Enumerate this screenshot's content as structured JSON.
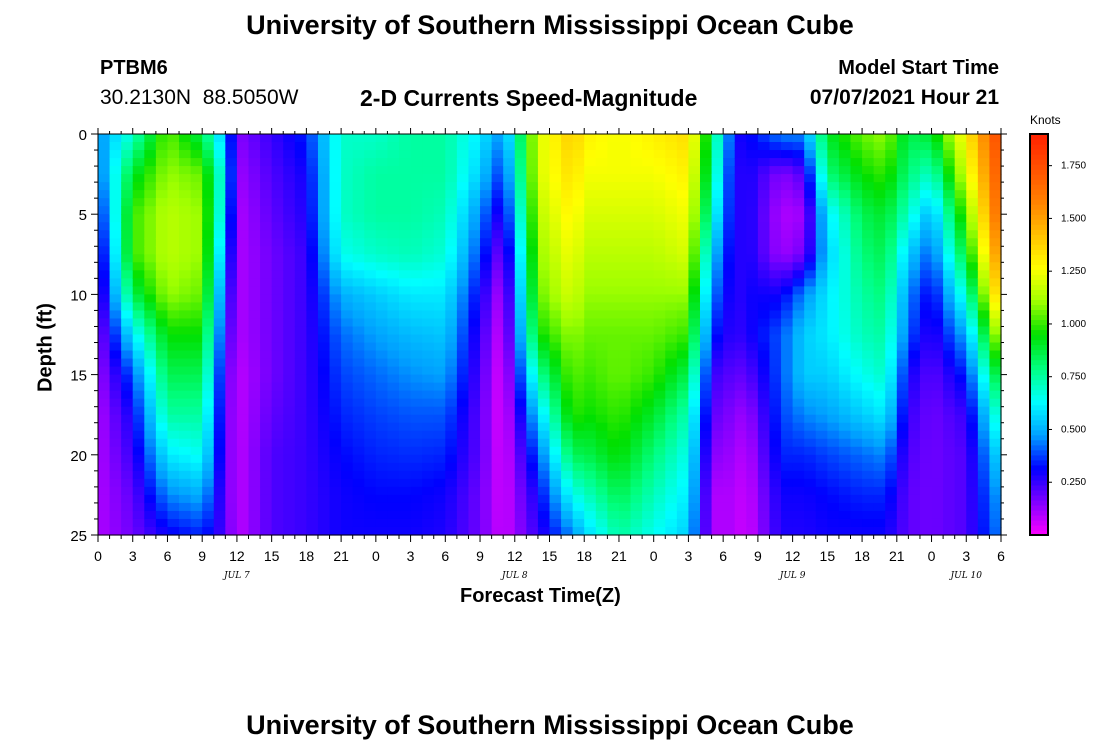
{
  "header": {
    "title": "University of Southern Mississippi Ocean Cube",
    "station_id": "PTBM6",
    "coordinates": "30.2130N  88.5050W",
    "subtitle": "2-D Currents Speed-Magnitude",
    "model_start_label": "Model Start Time",
    "model_start_value": "07/07/2021 Hour 21"
  },
  "footer": {
    "title": "University of Southern Mississippi Ocean Cube"
  },
  "chart_data": {
    "type": "heatmap",
    "xlabel": "Forecast Time(Z)",
    "ylabel": "Depth (ft)",
    "x_range": [
      0,
      78
    ],
    "x_ticks_hours": [
      0,
      3,
      6,
      9,
      12,
      15,
      18,
      21,
      24,
      27,
      30,
      33,
      36,
      39,
      42,
      45,
      48,
      51,
      54,
      57,
      60,
      63,
      66,
      69,
      72,
      75,
      78
    ],
    "x_tick_labels": [
      "0",
      "3",
      "6",
      "9",
      "12",
      "15",
      "18",
      "21",
      "0",
      "3",
      "6",
      "9",
      "12",
      "15",
      "18",
      "21",
      "0",
      "3",
      "6",
      "9",
      "12",
      "15",
      "18",
      "21",
      "0",
      "3",
      "6"
    ],
    "day_labels": [
      {
        "hour": 12,
        "label": "JUL 7"
      },
      {
        "hour": 36,
        "label": "JUL 8"
      },
      {
        "hour": 60,
        "label": "JUL 9"
      },
      {
        "hour": 75,
        "label": "JUL 10"
      }
    ],
    "y_range": [
      0,
      25
    ],
    "y_ticks": [
      0,
      5,
      10,
      15,
      20,
      25
    ],
    "y_inverted": true,
    "colorbar": {
      "unit_label": "Knots",
      "range": [
        0,
        1.9
      ],
      "ticks": [
        0.25,
        0.5,
        0.75,
        1.0,
        1.25,
        1.5,
        1.75
      ],
      "tick_labels": [
        "0.250",
        "0.500",
        "0.750",
        "1.000",
        "1.250",
        "1.500",
        "1.750"
      ],
      "colormap": [
        "#ff00ff",
        "#8000ff",
        "#0000ff",
        "#00a0ff",
        "#00ffff",
        "#00ff80",
        "#00e000",
        "#a0ff00",
        "#ffff00",
        "#ffc000",
        "#ff8000",
        "#ff5000",
        "#ff2000"
      ]
    },
    "depth_levels_ft": [
      0,
      2.5,
      5,
      7.5,
      10,
      12.5,
      15,
      17.5,
      20,
      22.5,
      25
    ],
    "times_hours": [
      0,
      3,
      6,
      9,
      11,
      12,
      15,
      18,
      21,
      24,
      27,
      30,
      33,
      35,
      38,
      41,
      42,
      45,
      48,
      51,
      53,
      55,
      56,
      59,
      61,
      63,
      66,
      68,
      70,
      72,
      75,
      78
    ],
    "speed_knots": [
      [
        0.45,
        0.4,
        0.3,
        0.22,
        0.18,
        0.14,
        0.12,
        0.1,
        0.1,
        0.1,
        0.1
      ],
      [
        0.7,
        0.9,
        1.0,
        1.0,
        0.85,
        0.6,
        0.4,
        0.3,
        0.25,
        0.2,
        0.18
      ],
      [
        1.05,
        1.1,
        1.15,
        1.15,
        1.1,
        0.95,
        0.85,
        0.75,
        0.6,
        0.45,
        0.3
      ],
      [
        0.85,
        1.05,
        1.1,
        1.1,
        1.05,
        0.95,
        0.85,
        0.75,
        0.65,
        0.5,
        0.35
      ],
      [
        0.5,
        0.6,
        0.55,
        0.45,
        0.35,
        0.28,
        0.22,
        0.2,
        0.2,
        0.2,
        0.22
      ],
      [
        0.15,
        0.12,
        0.1,
        0.1,
        0.1,
        0.1,
        0.08,
        0.08,
        0.08,
        0.08,
        0.08
      ],
      [
        0.25,
        0.22,
        0.2,
        0.18,
        0.18,
        0.18,
        0.18,
        0.2,
        0.22,
        0.22,
        0.22
      ],
      [
        0.35,
        0.3,
        0.28,
        0.25,
        0.25,
        0.25,
        0.25,
        0.25,
        0.25,
        0.25,
        0.25
      ],
      [
        0.7,
        0.7,
        0.7,
        0.65,
        0.5,
        0.42,
        0.38,
        0.35,
        0.32,
        0.3,
        0.3
      ],
      [
        0.7,
        0.75,
        0.75,
        0.7,
        0.55,
        0.48,
        0.42,
        0.38,
        0.35,
        0.32,
        0.3
      ],
      [
        0.75,
        0.75,
        0.75,
        0.72,
        0.6,
        0.52,
        0.46,
        0.4,
        0.36,
        0.32,
        0.3
      ],
      [
        0.75,
        0.75,
        0.72,
        0.68,
        0.6,
        0.54,
        0.48,
        0.4,
        0.35,
        0.3,
        0.28
      ],
      [
        0.6,
        0.55,
        0.45,
        0.38,
        0.3,
        0.25,
        0.22,
        0.2,
        0.2,
        0.18,
        0.18
      ],
      [
        0.45,
        0.35,
        0.25,
        0.15,
        0.08,
        0.05,
        0.03,
        0.03,
        0.04,
        0.05,
        0.06
      ],
      [
        1.2,
        1.2,
        1.15,
        1.1,
        1.05,
        0.95,
        0.75,
        0.55,
        0.4,
        0.3,
        0.25
      ],
      [
        1.4,
        1.35,
        1.3,
        1.25,
        1.2,
        1.1,
        1.05,
        1.0,
        0.85,
        0.65,
        0.45
      ],
      [
        1.3,
        1.25,
        1.2,
        1.15,
        1.1,
        1.05,
        1.0,
        0.95,
        0.85,
        0.7,
        0.55
      ],
      [
        1.25,
        1.25,
        1.2,
        1.15,
        1.1,
        1.05,
        1.05,
        1.0,
        0.95,
        0.85,
        0.75
      ],
      [
        1.3,
        1.25,
        1.2,
        1.15,
        1.1,
        1.05,
        1.0,
        0.9,
        0.8,
        0.72,
        0.65
      ],
      [
        1.35,
        1.3,
        1.25,
        1.2,
        1.1,
        1.0,
        0.85,
        0.72,
        0.65,
        0.6,
        0.55
      ],
      [
        0.85,
        0.8,
        0.7,
        0.55,
        0.45,
        0.35,
        0.25,
        0.2,
        0.15,
        0.1,
        0.1
      ],
      [
        0.3,
        0.25,
        0.25,
        0.25,
        0.25,
        0.25,
        0.2,
        0.15,
        0.12,
        0.1,
        0.1
      ],
      [
        0.3,
        0.3,
        0.3,
        0.3,
        0.3,
        0.28,
        0.2,
        0.12,
        0.08,
        0.06,
        0.05
      ],
      [
        0.45,
        0.15,
        0.1,
        0.12,
        0.3,
        0.4,
        0.4,
        0.38,
        0.35,
        0.3,
        0.28
      ],
      [
        0.45,
        0.22,
        0.12,
        0.18,
        0.45,
        0.55,
        0.55,
        0.45,
        0.35,
        0.3,
        0.28
      ],
      [
        0.9,
        0.8,
        0.6,
        0.55,
        0.6,
        0.6,
        0.55,
        0.48,
        0.38,
        0.32,
        0.3
      ],
      [
        1.05,
        0.95,
        0.85,
        0.8,
        0.75,
        0.72,
        0.65,
        0.55,
        0.42,
        0.35,
        0.3
      ],
      [
        1.1,
        1.0,
        0.9,
        0.85,
        0.8,
        0.75,
        0.7,
        0.6,
        0.45,
        0.35,
        0.3
      ],
      [
        0.85,
        0.8,
        0.7,
        0.55,
        0.45,
        0.4,
        0.3,
        0.25,
        0.22,
        0.2,
        0.2
      ],
      [
        0.9,
        0.7,
        0.5,
        0.4,
        0.3,
        0.25,
        0.2,
        0.18,
        0.18,
        0.18,
        0.18
      ],
      [
        1.3,
        1.2,
        1.05,
        0.9,
        0.7,
        0.5,
        0.35,
        0.25,
        0.22,
        0.22,
        0.22
      ],
      [
        1.8,
        1.75,
        1.7,
        1.6,
        1.45,
        1.2,
        0.95,
        0.75,
        0.6,
        0.5,
        0.45
      ]
    ]
  }
}
